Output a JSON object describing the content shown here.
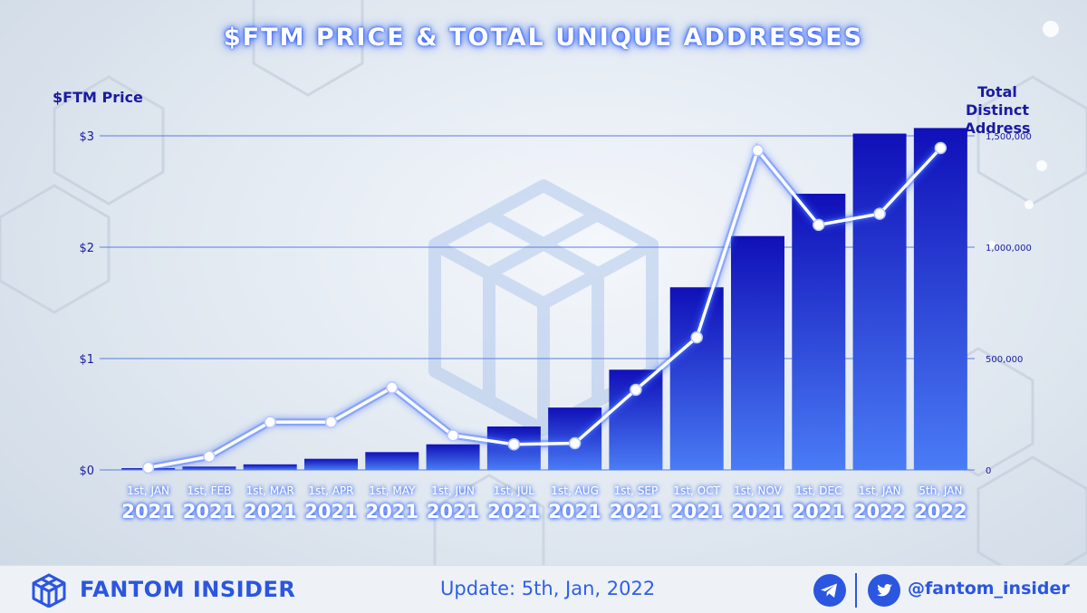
{
  "header": {
    "title": "$FTM PRICE & TOTAL UNIQUE ADDRESSES",
    "left_axis_title": "$FTM Price",
    "right_axis_title_line1": "Total Distinct",
    "right_axis_title_line2": "Address"
  },
  "footer": {
    "brand": "FANTOM INSIDER",
    "update": "Update: 5th, Jan, 2022",
    "handle": "@fantom_insider",
    "icons": [
      "fantom-cube-logo-icon",
      "telegram-icon",
      "twitter-icon"
    ]
  },
  "colors": {
    "bar_top": "#1010b8",
    "bar_bottom": "#4a7cf5",
    "line": "#ffffff",
    "line_glow": "#3f6dff",
    "grid": "#5a7ee0",
    "tick_text": "#1a1aa0",
    "title_glow": "#2a5bff"
  },
  "chart_data": {
    "type": "bar+line",
    "categories": [
      [
        "1st, JAN",
        "2021"
      ],
      [
        "1st, FEB",
        "2021"
      ],
      [
        "1st, MAR",
        "2021"
      ],
      [
        "1st, APR",
        "2021"
      ],
      [
        "1st, MAY",
        "2021"
      ],
      [
        "1st, JUN",
        "2021"
      ],
      [
        "1st, JUL",
        "2021"
      ],
      [
        "1st, AUG",
        "2021"
      ],
      [
        "1st, SEP",
        "2021"
      ],
      [
        "1st, OCT",
        "2021"
      ],
      [
        "1st, NOV",
        "2021"
      ],
      [
        "1st, DEC",
        "2021"
      ],
      [
        "1st, JAN",
        "2022"
      ],
      [
        "5th, JAN",
        "2022"
      ]
    ],
    "bars": {
      "axis": "right",
      "values": [
        8000,
        15000,
        25000,
        50000,
        80000,
        115000,
        195000,
        280000,
        450000,
        820000,
        1050000,
        1240000,
        1510000,
        1535000
      ]
    },
    "line": {
      "axis": "left",
      "values": [
        0.02,
        0.12,
        0.43,
        0.43,
        0.74,
        0.31,
        0.23,
        0.24,
        0.72,
        1.19,
        2.87,
        2.2,
        2.3,
        2.89
      ]
    },
    "left_axis": {
      "label": "$FTM Price",
      "ticks": [
        "$0",
        "$1",
        "$2",
        "$3"
      ],
      "range": [
        0,
        3
      ]
    },
    "right_axis": {
      "label": "Total Distinct Address",
      "ticks": [
        "0",
        "500,000",
        "1,000,000",
        "1,500,000"
      ],
      "range": [
        0,
        1500000
      ]
    },
    "grid": true
  }
}
